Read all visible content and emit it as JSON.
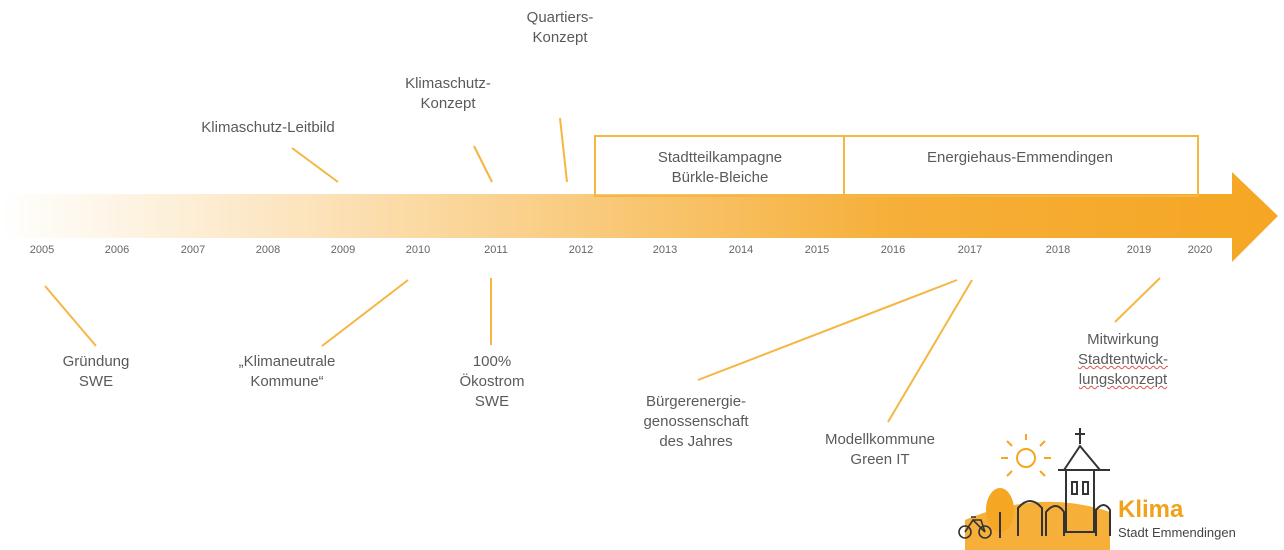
{
  "timeline": {
    "years": [
      "2005",
      "2006",
      "2007",
      "2008",
      "2009",
      "2010",
      "2011",
      "2012",
      "2013",
      "2014",
      "2015",
      "2016",
      "2017",
      "2018",
      "2019",
      "2020"
    ],
    "accent_color": "#f5a623"
  },
  "above_events": [
    {
      "id": "leitbild",
      "lines": [
        "Klimaschutz-Leitbild"
      ]
    },
    {
      "id": "klimaschutz-konzept",
      "lines": [
        "Klimaschutz-",
        "Konzept"
      ]
    },
    {
      "id": "quartiers-konzept",
      "lines": [
        "Quartiers-",
        "Konzept"
      ]
    }
  ],
  "campaigns": [
    {
      "id": "stadtteilkampagne",
      "lines": [
        "Stadtteilkampagne",
        "Bürkle-Bleiche"
      ]
    },
    {
      "id": "energiehaus",
      "lines": [
        "Energiehaus-Emmendingen"
      ]
    }
  ],
  "below_events": [
    {
      "id": "gruendung",
      "lines": [
        "Gründung",
        "SWE"
      ]
    },
    {
      "id": "klimaneutrale",
      "lines": [
        "„Klimaneutrale",
        "Kommune“"
      ]
    },
    {
      "id": "oekostrom",
      "lines": [
        "100%",
        "Ökostrom",
        "SWE"
      ]
    },
    {
      "id": "buergerenergie",
      "lines": [
        "Bürgerenergie-",
        "genossenschaft",
        "des Jahres"
      ]
    },
    {
      "id": "modellkommune",
      "lines": [
        "Modellkommune",
        "Green IT"
      ]
    },
    {
      "id": "mitwirkung",
      "lines": [
        "Mitwirkung",
        "Stadtentwick-",
        "lungskonzept"
      ]
    }
  ],
  "logo": {
    "title": "Klima",
    "subtitle": "Stadt Emmendingen"
  }
}
